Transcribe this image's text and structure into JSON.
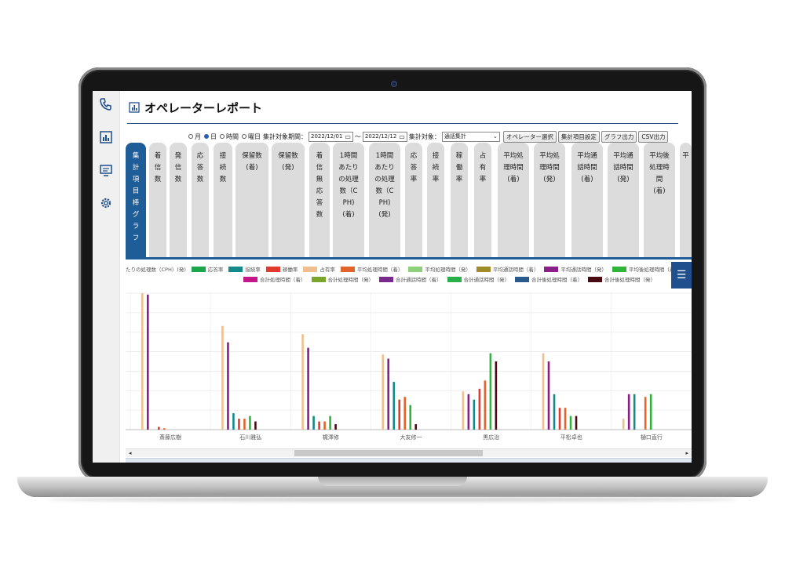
{
  "page": {
    "title": "オペレーターレポート"
  },
  "controls": {
    "radio_month": "月",
    "radio_day": "日",
    "radio_hour": "時間",
    "radio_weekday": "曜日",
    "period_label": "集計対象期間：",
    "date_from": "2022/12/01",
    "range_sep": "～",
    "date_to": "2022/12/12",
    "target_label": "集計対象：",
    "target_value": "通話集計",
    "btn_operator": "オペレーター選択",
    "btn_items": "集計項目設定",
    "btn_graph": "グラフ出力",
    "btn_csv": "CSV出力"
  },
  "tabs": [
    {
      "label": "集\n計\n項\n目\n棒\nグ\nラ\nフ",
      "active": true
    },
    {
      "label": "着\n信\n数"
    },
    {
      "label": "発\n信\n数"
    },
    {
      "label": "応\n答\n数"
    },
    {
      "label": "接\n続\n数"
    },
    {
      "label": "保留数\n(着)"
    },
    {
      "label": "保留数\n(発)"
    },
    {
      "label": "着\n信\n無\n応\n答\n数"
    },
    {
      "label": "1時間\nあたり\nの処理\n数（C\nPH)\n(着)"
    },
    {
      "label": "1時間\nあたり\nの処理\n数（C\nPH)\n(発)"
    },
    {
      "label": "応\n答\n率"
    },
    {
      "label": "接\n続\n率"
    },
    {
      "label": "稼\n働\n率"
    },
    {
      "label": "占\n有\n率"
    },
    {
      "label": "平均処\n理時間\n(着)"
    },
    {
      "label": "平均処\n理時間\n(発)"
    },
    {
      "label": "平均通\n話時間\n(着)"
    },
    {
      "label": "平均通\n話時間\n(発)"
    },
    {
      "label": "平均後\n処理時\n間\n(着)"
    },
    {
      "label": "平"
    }
  ],
  "legend": {
    "row1": [
      {
        "label": "たりの処理数（CPH）(発)",
        "color": ""
      },
      {
        "label": "応答率",
        "color": "#1aa64a"
      },
      {
        "label": "接続率",
        "color": "#138a8a"
      },
      {
        "label": "稼働率",
        "color": "#e23b2e"
      },
      {
        "label": "占有率",
        "color": "#efc08e"
      },
      {
        "label": "平均処理時間（着）",
        "color": "#e2642a"
      },
      {
        "label": "平均処理時間（発）",
        "color": "#8fd17a"
      },
      {
        "label": "平均通話時間（着）",
        "color": "#a08a2a"
      },
      {
        "label": "平均通話時間（発）",
        "color": "#8a1f8c"
      },
      {
        "label": "平均後処理時間（着）",
        "color": "#2fb53a"
      }
    ],
    "row2": [
      {
        "label": "合計処理時間（着）",
        "color": "#c4178a"
      },
      {
        "label": "合計処理時間（発）",
        "color": "#7aa62e"
      },
      {
        "label": "合計通話時間（着）",
        "color": "#7a2a8c"
      },
      {
        "label": "合計通話時間（発）",
        "color": "#2ab04a"
      },
      {
        "label": "合計後処理時間（着）",
        "color": "#2a5a8c"
      },
      {
        "label": "合計後処理時間（発）",
        "color": "#4a0a12"
      }
    ]
  },
  "menu_icon": "menu-icon",
  "chart_data": {
    "type": "bar",
    "categories": [
      "斎藤広樹",
      "石川雅弘",
      "梶澤修",
      "大友修一",
      "黒広治",
      "平松卓也",
      "樋口直行"
    ],
    "series": [
      {
        "name": "占有率",
        "color": "#efc08e",
        "values": [
          100,
          76,
          70,
          55,
          28,
          56,
          8
        ]
      },
      {
        "name": "平均通話時間（発）",
        "color": "#8a1f8c",
        "values": [
          99,
          64,
          60,
          52,
          26,
          50,
          26
        ]
      },
      {
        "name": "接続率",
        "color": "#138a8a",
        "values": [
          0,
          12,
          10,
          35,
          22,
          26,
          26
        ]
      },
      {
        "name": "稼働率",
        "color": "#e23b2e",
        "values": [
          2,
          8,
          6,
          22,
          30,
          16,
          0
        ]
      },
      {
        "name": "平均処理時間（着）",
        "color": "#e2642a",
        "values": [
          1,
          8,
          6,
          24,
          36,
          16,
          24
        ]
      },
      {
        "name": "平均後処理時間（着）",
        "color": "#2fb53a",
        "values": [
          0,
          10,
          10,
          18,
          56,
          10,
          26
        ]
      },
      {
        "name": "合計後処理時間（発）",
        "color": "#4a0a12",
        "values": [
          0,
          6,
          4,
          4,
          50,
          10,
          0
        ]
      }
    ],
    "ylim": [
      0,
      100
    ],
    "grid": true
  }
}
